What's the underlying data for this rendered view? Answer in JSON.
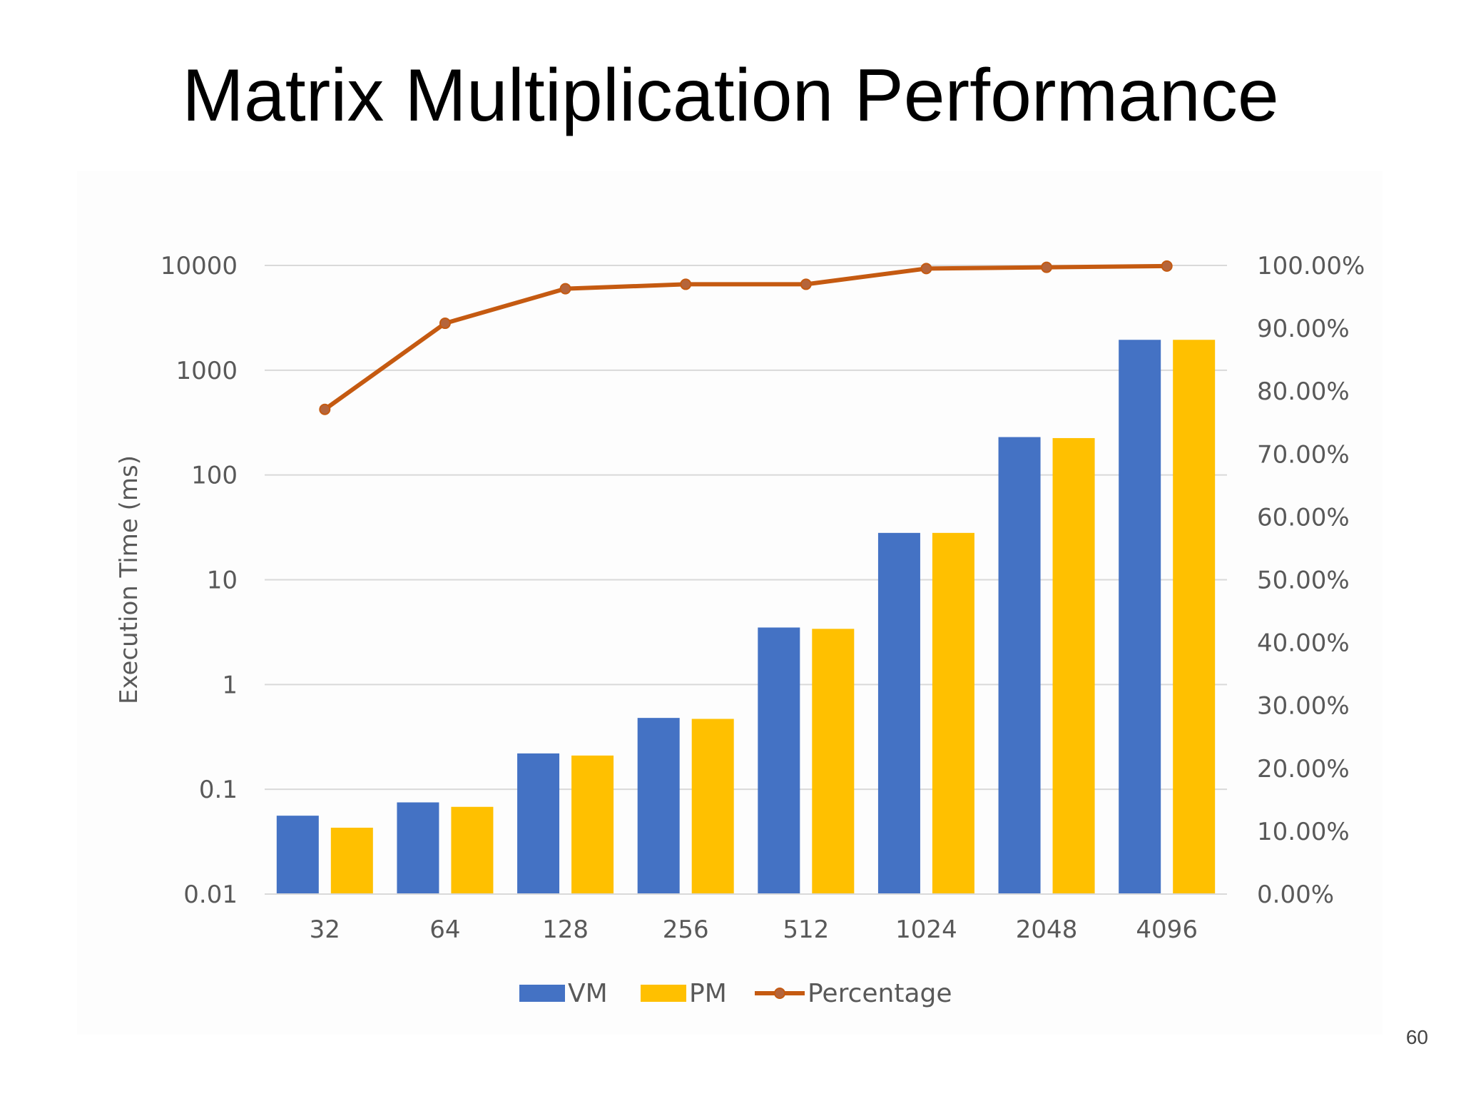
{
  "slide": {
    "title": "Matrix Multiplication Performance",
    "page_number": "60"
  },
  "chart_data": {
    "type": "bar",
    "title": "",
    "xlabel": "",
    "ylabel": "Execution Time (ms)",
    "categories": [
      "32",
      "64",
      "128",
      "256",
      "512",
      "1024",
      "2048",
      "4096"
    ],
    "y_scale": "log",
    "ylim": [
      0.01,
      10000
    ],
    "y_ticks": [
      "0.01",
      "0.1",
      "1",
      "10",
      "100",
      "1000",
      "10000"
    ],
    "y2_lim": [
      0,
      1.0
    ],
    "y2_ticks": [
      "0.00%",
      "10.00%",
      "20.00%",
      "30.00%",
      "40.00%",
      "50.00%",
      "60.00%",
      "70.00%",
      "80.00%",
      "90.00%",
      "100.00%"
    ],
    "series": [
      {
        "name": "VM",
        "type": "bar",
        "axis": "left",
        "color": "#4472c4",
        "values": [
          0.056,
          0.075,
          0.22,
          0.48,
          3.5,
          28,
          230,
          1950
        ]
      },
      {
        "name": "PM",
        "type": "bar",
        "axis": "left",
        "color": "#ffc000",
        "values": [
          0.043,
          0.068,
          0.21,
          0.47,
          3.4,
          28,
          225,
          1950
        ]
      },
      {
        "name": "Percentage",
        "type": "line",
        "axis": "right",
        "color": "#c55a11",
        "values": [
          0.771,
          0.908,
          0.963,
          0.97,
          0.97,
          0.995,
          0.997,
          0.999
        ]
      }
    ],
    "grid": true,
    "legend_position": "bottom"
  }
}
